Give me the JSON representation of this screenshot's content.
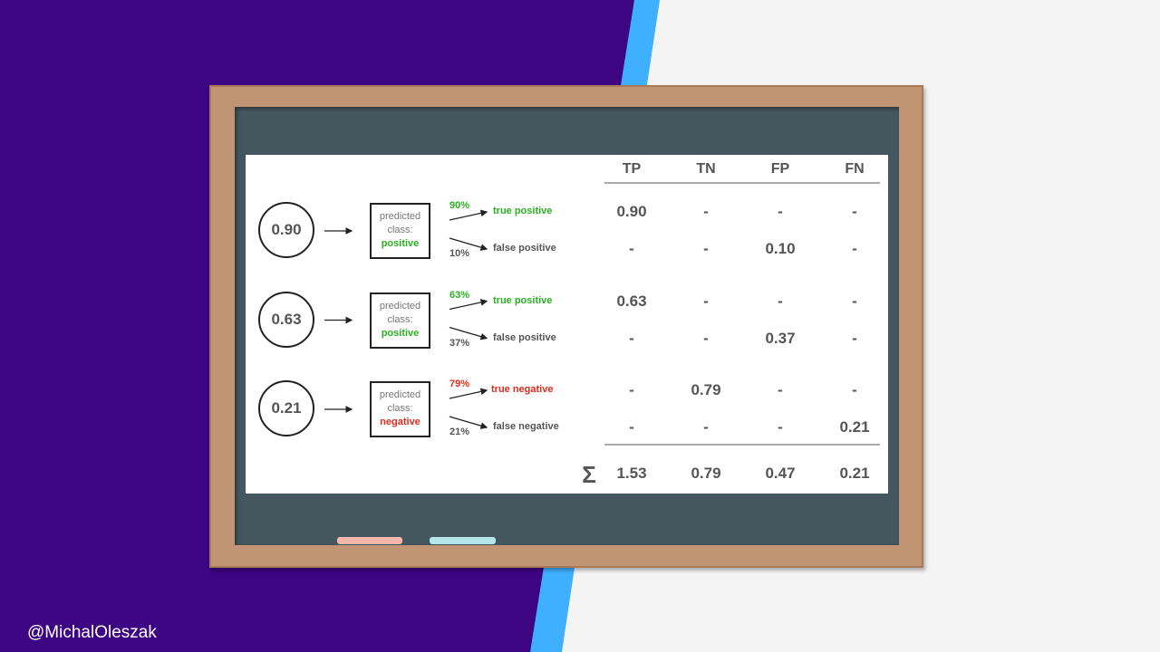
{
  "colors": {
    "purple": "#3d0582",
    "stripe": "#3fb0ff",
    "light": "#f4f4f4",
    "green": "#2ab021",
    "red": "#e02a1a",
    "gray": "#555555"
  },
  "table_headers": [
    "TP",
    "TN",
    "FP",
    "FN"
  ],
  "box_label": "predicted class:",
  "rows": [
    {
      "score": "0.90",
      "predicted": "positive",
      "color": "#2ab021",
      "branches": [
        {
          "pct": "90%",
          "outcome": "true positive",
          "color": "#2ab021",
          "values": [
            "0.90",
            "-",
            "-",
            "-"
          ]
        },
        {
          "pct": "10%",
          "outcome": "false positive",
          "color": "#555555",
          "values": [
            "-",
            "-",
            "0.10",
            "-"
          ]
        }
      ]
    },
    {
      "score": "0.63",
      "predicted": "positive",
      "color": "#2ab021",
      "branches": [
        {
          "pct": "63%",
          "outcome": "true positive",
          "color": "#2ab021",
          "values": [
            "0.63",
            "-",
            "-",
            "-"
          ]
        },
        {
          "pct": "37%",
          "outcome": "false positive",
          "color": "#555555",
          "values": [
            "-",
            "-",
            "0.37",
            "-"
          ]
        }
      ]
    },
    {
      "score": "0.21",
      "predicted": "negative",
      "color": "#e02a1a",
      "branches": [
        {
          "pct": "79%",
          "outcome": "true negative",
          "color": "#e02a1a",
          "values": [
            "-",
            "0.79",
            "-",
            "-"
          ]
        },
        {
          "pct": "21%",
          "outcome": "false negative",
          "color": "#555555",
          "values": [
            "-",
            "-",
            "-",
            "0.21"
          ]
        }
      ]
    }
  ],
  "sum_symbol": "Σ",
  "sums": [
    "1.53",
    "0.79",
    "0.47",
    "0.21"
  ],
  "handle": "@MichalOleszak"
}
